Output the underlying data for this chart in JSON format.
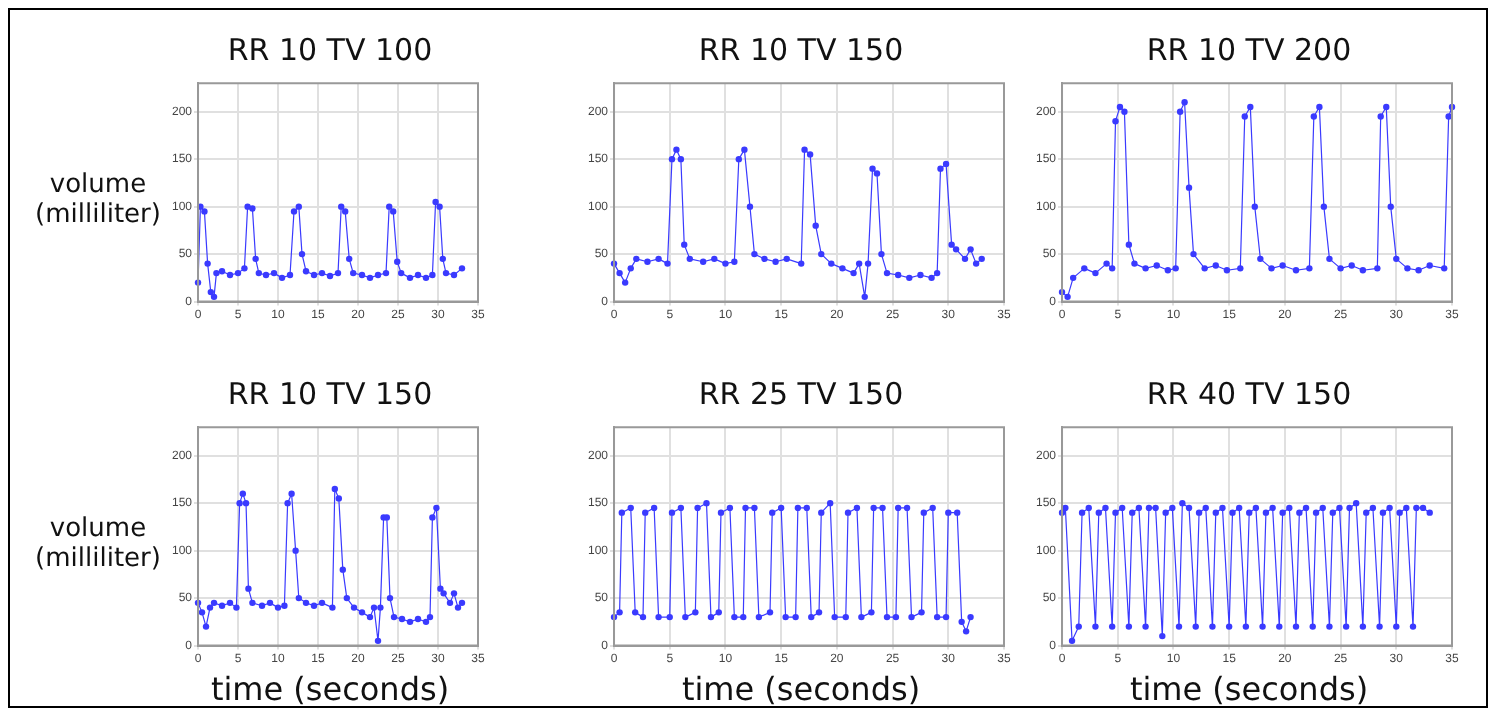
{
  "chart_data": [
    {
      "type": "line",
      "title": "RR 10 TV 100",
      "ylabel": "volume\n(milliliter)",
      "xlim": [
        0,
        35
      ],
      "ylim": [
        0,
        230
      ],
      "xticks": [
        0,
        5,
        10,
        15,
        20,
        25,
        30,
        35
      ],
      "yticks": [
        0,
        50,
        100,
        150,
        200
      ],
      "grid": true,
      "marker": "circle",
      "line_style": "solid",
      "series": [
        {
          "color": "#3a3aff",
          "x": [
            0,
            0.3,
            0.8,
            1.2,
            1.6,
            2,
            2.3,
            3,
            4,
            5,
            5.8,
            6.2,
            6.8,
            7.2,
            7.6,
            8.5,
            9.5,
            10.5,
            11.5,
            12,
            12.6,
            13,
            13.5,
            14.5,
            15.5,
            16.5,
            17.5,
            17.9,
            18.4,
            18.9,
            19.4,
            20.5,
            21.5,
            22.5,
            23.5,
            23.9,
            24.4,
            24.9,
            25.4,
            26.5,
            27.5,
            28.5,
            29.3,
            29.7,
            30.2,
            30.6,
            31,
            32,
            33
          ],
          "values": [
            20,
            100,
            95,
            40,
            10,
            5,
            30,
            32,
            28,
            30,
            35,
            100,
            98,
            45,
            30,
            28,
            30,
            25,
            28,
            95,
            100,
            50,
            32,
            28,
            30,
            27,
            30,
            100,
            95,
            45,
            30,
            28,
            25,
            28,
            30,
            100,
            95,
            42,
            30,
            25,
            28,
            25,
            28,
            105,
            100,
            45,
            30,
            28,
            35
          ]
        }
      ]
    },
    {
      "type": "line",
      "title": "RR 10 TV 150",
      "xlim": [
        0,
        35
      ],
      "ylim": [
        0,
        230
      ],
      "xticks": [
        0,
        5,
        10,
        15,
        20,
        25,
        30,
        35
      ],
      "yticks": [
        0,
        50,
        100,
        150,
        200
      ],
      "grid": true,
      "marker": "circle",
      "line_style": "solid",
      "series": [
        {
          "color": "#3a3aff",
          "x": [
            0,
            0.5,
            1,
            1.5,
            2,
            3,
            4,
            4.8,
            5.2,
            5.6,
            6,
            6.3,
            6.8,
            8,
            9,
            10,
            10.8,
            11.2,
            11.7,
            12.2,
            12.6,
            13.5,
            14.5,
            15.5,
            16.8,
            17.1,
            17.6,
            18.1,
            18.6,
            19.5,
            20.5,
            21.5,
            22,
            22.5,
            22.8,
            23.2,
            23.6,
            24,
            24.5,
            25.5,
            26.5,
            27.5,
            28.5,
            29,
            29.3,
            29.8,
            30.3,
            30.7,
            31.5,
            32,
            32.5,
            33
          ],
          "values": [
            40,
            30,
            20,
            35,
            45,
            42,
            45,
            40,
            150,
            160,
            150,
            60,
            45,
            42,
            45,
            40,
            42,
            150,
            160,
            100,
            50,
            45,
            42,
            45,
            40,
            160,
            155,
            80,
            50,
            40,
            35,
            30,
            40,
            5,
            40,
            140,
            135,
            50,
            30,
            28,
            25,
            28,
            25,
            30,
            140,
            145,
            60,
            55,
            45,
            55,
            40,
            45
          ]
        }
      ]
    },
    {
      "type": "line",
      "title": "RR 10 TV 200",
      "xlim": [
        0,
        35
      ],
      "ylim": [
        0,
        230
      ],
      "xticks": [
        0,
        5,
        10,
        15,
        20,
        25,
        30,
        35
      ],
      "yticks": [
        0,
        50,
        100,
        150,
        200
      ],
      "grid": true,
      "marker": "circle",
      "line_style": "solid",
      "series": [
        {
          "color": "#3a3aff",
          "x": [
            0,
            0.5,
            1,
            2,
            3,
            4,
            4.5,
            4.8,
            5.2,
            5.6,
            6,
            6.5,
            7.5,
            8.5,
            9.5,
            10.2,
            10.6,
            11,
            11.4,
            11.8,
            12.8,
            13.8,
            14.8,
            16,
            16.4,
            16.9,
            17.3,
            17.8,
            18.8,
            19.8,
            21,
            22.2,
            22.6,
            23.1,
            23.5,
            24,
            25,
            26,
            27,
            28.3,
            28.6,
            29.1,
            29.5,
            30,
            31,
            32,
            33,
            34.3,
            34.7,
            35
          ],
          "values": [
            10,
            5,
            25,
            35,
            30,
            40,
            35,
            190,
            205,
            200,
            60,
            40,
            35,
            38,
            33,
            35,
            200,
            210,
            120,
            50,
            35,
            38,
            33,
            35,
            195,
            205,
            100,
            45,
            35,
            38,
            33,
            35,
            195,
            205,
            100,
            45,
            35,
            38,
            33,
            35,
            195,
            205,
            100,
            45,
            35,
            33,
            38,
            35,
            195,
            205
          ]
        }
      ]
    },
    {
      "type": "line",
      "title": "RR 10 TV 150",
      "ylabel": "volume\n(milliliter)",
      "xlabel": "time (seconds)",
      "xlim": [
        0,
        35
      ],
      "ylim": [
        0,
        230
      ],
      "xticks": [
        0,
        5,
        10,
        15,
        20,
        25,
        30,
        35
      ],
      "yticks": [
        0,
        50,
        100,
        150,
        200
      ],
      "grid": true,
      "marker": "circle",
      "line_style": "solid",
      "series": [
        {
          "color": "#3a3aff",
          "x": [
            0,
            0.5,
            1,
            1.5,
            2,
            3,
            4,
            4.8,
            5.2,
            5.6,
            6,
            6.3,
            6.8,
            8,
            9,
            10,
            10.8,
            11.2,
            11.7,
            12.2,
            12.6,
            13.5,
            14.5,
            15.5,
            16.8,
            17.1,
            17.6,
            18.1,
            18.6,
            19.5,
            20.5,
            21.5,
            22,
            22.5,
            22.8,
            23.2,
            23.6,
            24,
            24.5,
            25.5,
            26.5,
            27.5,
            28.5,
            29,
            29.3,
            29.8,
            30.3,
            30.7,
            31.5,
            32,
            32.5,
            33
          ],
          "values": [
            45,
            35,
            20,
            40,
            45,
            42,
            45,
            40,
            150,
            160,
            150,
            60,
            45,
            42,
            45,
            40,
            42,
            150,
            160,
            100,
            50,
            45,
            42,
            45,
            40,
            165,
            155,
            80,
            50,
            40,
            35,
            30,
            40,
            5,
            40,
            135,
            135,
            50,
            30,
            28,
            25,
            28,
            25,
            30,
            135,
            145,
            60,
            55,
            45,
            55,
            40,
            45
          ]
        }
      ]
    },
    {
      "type": "line",
      "title": "RR 25 TV 150",
      "xlabel": "time (seconds)",
      "xlim": [
        0,
        35
      ],
      "ylim": [
        0,
        230
      ],
      "xticks": [
        0,
        5,
        10,
        15,
        20,
        25,
        30,
        35
      ],
      "yticks": [
        0,
        50,
        100,
        150,
        200
      ],
      "grid": true,
      "marker": "circle",
      "line_style": "solid",
      "series": [
        {
          "color": "#3a3aff",
          "x": [
            0,
            0.5,
            0.7,
            1.5,
            1.9,
            2.6,
            2.8,
            3.6,
            4,
            5,
            5.2,
            6,
            6.4,
            7.3,
            7.5,
            8.3,
            8.7,
            9.4,
            9.6,
            10.4,
            10.8,
            11.6,
            11.8,
            12.6,
            13,
            14,
            14.2,
            15,
            15.4,
            16.3,
            16.5,
            17.3,
            17.7,
            18.4,
            18.6,
            19.4,
            19.8,
            20.8,
            21,
            21.8,
            22.2,
            23.1,
            23.3,
            24.1,
            24.5,
            25.3,
            25.5,
            26.3,
            26.7,
            27.6,
            27.8,
            28.6,
            29,
            29.8,
            30,
            30.8,
            31.2,
            31.6,
            32
          ],
          "values": [
            30,
            35,
            140,
            145,
            35,
            30,
            140,
            145,
            30,
            30,
            140,
            145,
            30,
            35,
            145,
            150,
            30,
            35,
            140,
            145,
            30,
            30,
            145,
            145,
            30,
            35,
            140,
            145,
            30,
            30,
            145,
            145,
            30,
            35,
            140,
            150,
            30,
            30,
            140,
            145,
            30,
            35,
            145,
            145,
            30,
            30,
            145,
            145,
            30,
            35,
            140,
            145,
            30,
            30,
            140,
            140,
            25,
            15,
            30
          ]
        }
      ]
    },
    {
      "type": "line",
      "title": "RR 40 TV 150",
      "xlabel": "time (seconds)",
      "xlim": [
        0,
        35
      ],
      "ylim": [
        0,
        230
      ],
      "xticks": [
        0,
        5,
        10,
        15,
        20,
        25,
        30,
        35
      ],
      "yticks": [
        0,
        50,
        100,
        150,
        200
      ],
      "grid": true,
      "marker": "circle",
      "line_style": "solid",
      "series": [
        {
          "color": "#3a3aff",
          "x": [
            0,
            0.3,
            0.9,
            1.5,
            1.8,
            2.4,
            3,
            3.3,
            3.9,
            4.5,
            4.8,
            5.4,
            6,
            6.3,
            6.9,
            7.5,
            7.8,
            8.4,
            9,
            9.3,
            9.9,
            10.5,
            10.8,
            11.4,
            12,
            12.3,
            12.9,
            13.5,
            13.8,
            14.4,
            15,
            15.3,
            15.9,
            16.5,
            16.8,
            17.4,
            18,
            18.3,
            18.9,
            19.5,
            19.8,
            20.4,
            21,
            21.3,
            21.9,
            22.5,
            22.8,
            23.4,
            24,
            24.3,
            24.9,
            25.5,
            25.8,
            26.4,
            27,
            27.3,
            27.9,
            28.5,
            28.8,
            29.4,
            30,
            30.3,
            30.9,
            31.5,
            31.8,
            32.4,
            33
          ],
          "values": [
            140,
            145,
            5,
            20,
            140,
            145,
            20,
            140,
            145,
            20,
            140,
            145,
            20,
            140,
            145,
            20,
            145,
            145,
            10,
            140,
            145,
            20,
            150,
            145,
            20,
            140,
            145,
            20,
            140,
            145,
            20,
            140,
            145,
            20,
            140,
            145,
            20,
            140,
            145,
            20,
            140,
            145,
            20,
            140,
            145,
            20,
            140,
            145,
            20,
            140,
            145,
            20,
            145,
            150,
            20,
            140,
            145,
            20,
            140,
            145,
            20,
            140,
            145,
            20,
            145,
            145,
            140
          ]
        }
      ]
    }
  ]
}
